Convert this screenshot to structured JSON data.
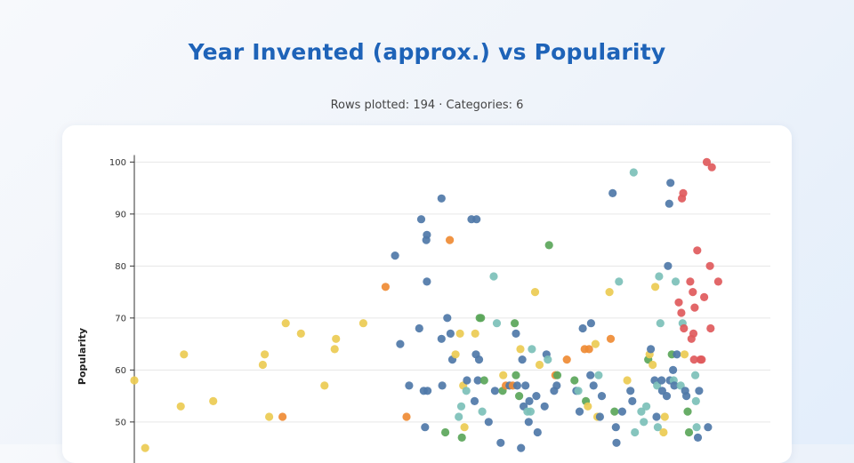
{
  "header": {
    "title": "Year Invented (approx.) vs Popularity",
    "subtitle": "Rows plotted: 194 · Categories: 6"
  },
  "colors": {
    "blue": "#4f78a8",
    "yellow": "#eccb53",
    "red": "#e05a5c",
    "teal": "#7cc0b8",
    "green": "#5ba65a",
    "orange": "#ef8b34",
    "title": "#1e63b8",
    "grid": "#e6e6e6"
  },
  "chart_data": {
    "type": "scatter",
    "xlabel": "",
    "ylabel": "Popularity",
    "ylim": [
      45,
      101
    ],
    "xlim": [
      0,
      1000
    ],
    "yticks": [
      50,
      60,
      70,
      80,
      90,
      100
    ],
    "grid": true,
    "points": [
      {
        "x": 0,
        "y": 58,
        "c": "yellow"
      },
      {
        "x": 17,
        "y": 45,
        "c": "yellow"
      },
      {
        "x": 73,
        "y": 53,
        "c": "yellow"
      },
      {
        "x": 78,
        "y": 63,
        "c": "yellow"
      },
      {
        "x": 124,
        "y": 54,
        "c": "yellow"
      },
      {
        "x": 202,
        "y": 61,
        "c": "yellow"
      },
      {
        "x": 205,
        "y": 63,
        "c": "yellow"
      },
      {
        "x": 212,
        "y": 51,
        "c": "yellow"
      },
      {
        "x": 233,
        "y": 51,
        "c": "orange"
      },
      {
        "x": 238,
        "y": 69,
        "c": "yellow"
      },
      {
        "x": 262,
        "y": 67,
        "c": "yellow"
      },
      {
        "x": 299,
        "y": 57,
        "c": "yellow"
      },
      {
        "x": 315,
        "y": 64,
        "c": "yellow"
      },
      {
        "x": 317,
        "y": 66,
        "c": "yellow"
      },
      {
        "x": 360,
        "y": 69,
        "c": "yellow"
      },
      {
        "x": 395,
        "y": 76,
        "c": "orange"
      },
      {
        "x": 410,
        "y": 82,
        "c": "blue"
      },
      {
        "x": 418,
        "y": 65,
        "c": "blue"
      },
      {
        "x": 428,
        "y": 51,
        "c": "orange"
      },
      {
        "x": 432,
        "y": 57,
        "c": "blue"
      },
      {
        "x": 448,
        "y": 68,
        "c": "blue"
      },
      {
        "x": 451,
        "y": 89,
        "c": "blue"
      },
      {
        "x": 455,
        "y": 56,
        "c": "blue"
      },
      {
        "x": 457,
        "y": 49,
        "c": "blue"
      },
      {
        "x": 459,
        "y": 85,
        "c": "blue"
      },
      {
        "x": 460,
        "y": 86,
        "c": "blue"
      },
      {
        "x": 460,
        "y": 77,
        "c": "blue"
      },
      {
        "x": 461,
        "y": 56,
        "c": "blue"
      },
      {
        "x": 483,
        "y": 93,
        "c": "blue"
      },
      {
        "x": 483,
        "y": 66,
        "c": "blue"
      },
      {
        "x": 484,
        "y": 57,
        "c": "blue"
      },
      {
        "x": 489,
        "y": 48,
        "c": "green"
      },
      {
        "x": 492,
        "y": 70,
        "c": "blue"
      },
      {
        "x": 496,
        "y": 85,
        "c": "orange"
      },
      {
        "x": 497,
        "y": 67,
        "c": "blue"
      },
      {
        "x": 500,
        "y": 62,
        "c": "blue"
      },
      {
        "x": 505,
        "y": 63,
        "c": "yellow"
      },
      {
        "x": 510,
        "y": 51,
        "c": "teal"
      },
      {
        "x": 512,
        "y": 67,
        "c": "yellow"
      },
      {
        "x": 514,
        "y": 53,
        "c": "teal"
      },
      {
        "x": 515,
        "y": 47,
        "c": "green"
      },
      {
        "x": 517,
        "y": 57,
        "c": "yellow"
      },
      {
        "x": 519,
        "y": 49,
        "c": "yellow"
      },
      {
        "x": 522,
        "y": 56,
        "c": "teal"
      },
      {
        "x": 523,
        "y": 58,
        "c": "blue"
      },
      {
        "x": 530,
        "y": 89,
        "c": "blue"
      },
      {
        "x": 535,
        "y": 54,
        "c": "blue"
      },
      {
        "x": 536,
        "y": 67,
        "c": "yellow"
      },
      {
        "x": 537,
        "y": 63,
        "c": "blue"
      },
      {
        "x": 538,
        "y": 89,
        "c": "blue"
      },
      {
        "x": 540,
        "y": 58,
        "c": "blue"
      },
      {
        "x": 542,
        "y": 62,
        "c": "blue"
      },
      {
        "x": 543,
        "y": 70,
        "c": "green"
      },
      {
        "x": 545,
        "y": 70,
        "c": "green"
      },
      {
        "x": 547,
        "y": 52,
        "c": "teal"
      },
      {
        "x": 550,
        "y": 58,
        "c": "green"
      },
      {
        "x": 557,
        "y": 50,
        "c": "blue"
      },
      {
        "x": 565,
        "y": 78,
        "c": "teal"
      },
      {
        "x": 567,
        "y": 56,
        "c": "blue"
      },
      {
        "x": 570,
        "y": 69,
        "c": "teal"
      },
      {
        "x": 576,
        "y": 46,
        "c": "blue"
      },
      {
        "x": 579,
        "y": 56,
        "c": "green"
      },
      {
        "x": 580,
        "y": 59,
        "c": "yellow"
      },
      {
        "x": 584,
        "y": 57,
        "c": "orange"
      },
      {
        "x": 590,
        "y": 57,
        "c": "blue"
      },
      {
        "x": 595,
        "y": 57,
        "c": "orange"
      },
      {
        "x": 598,
        "y": 69,
        "c": "green"
      },
      {
        "x": 600,
        "y": 67,
        "c": "blue"
      },
      {
        "x": 600,
        "y": 59,
        "c": "green"
      },
      {
        "x": 602,
        "y": 57,
        "c": "blue"
      },
      {
        "x": 605,
        "y": 55,
        "c": "green"
      },
      {
        "x": 607,
        "y": 64,
        "c": "yellow"
      },
      {
        "x": 608,
        "y": 45,
        "c": "blue"
      },
      {
        "x": 610,
        "y": 62,
        "c": "blue"
      },
      {
        "x": 612,
        "y": 53,
        "c": "blue"
      },
      {
        "x": 615,
        "y": 57,
        "c": "blue"
      },
      {
        "x": 618,
        "y": 52,
        "c": "teal"
      },
      {
        "x": 620,
        "y": 50,
        "c": "blue"
      },
      {
        "x": 621,
        "y": 54,
        "c": "blue"
      },
      {
        "x": 623,
        "y": 52,
        "c": "teal"
      },
      {
        "x": 625,
        "y": 64,
        "c": "teal"
      },
      {
        "x": 630,
        "y": 75,
        "c": "yellow"
      },
      {
        "x": 632,
        "y": 55,
        "c": "blue"
      },
      {
        "x": 634,
        "y": 48,
        "c": "blue"
      },
      {
        "x": 637,
        "y": 61,
        "c": "yellow"
      },
      {
        "x": 645,
        "y": 53,
        "c": "blue"
      },
      {
        "x": 648,
        "y": 63,
        "c": "blue"
      },
      {
        "x": 650,
        "y": 62,
        "c": "teal"
      },
      {
        "x": 652,
        "y": 84,
        "c": "green"
      },
      {
        "x": 660,
        "y": 56,
        "c": "blue"
      },
      {
        "x": 662,
        "y": 59,
        "c": "orange"
      },
      {
        "x": 664,
        "y": 57,
        "c": "blue"
      },
      {
        "x": 665,
        "y": 59,
        "c": "green"
      },
      {
        "x": 680,
        "y": 62,
        "c": "orange"
      },
      {
        "x": 692,
        "y": 58,
        "c": "green"
      },
      {
        "x": 695,
        "y": 56,
        "c": "blue"
      },
      {
        "x": 698,
        "y": 56,
        "c": "teal"
      },
      {
        "x": 700,
        "y": 52,
        "c": "blue"
      },
      {
        "x": 705,
        "y": 68,
        "c": "blue"
      },
      {
        "x": 708,
        "y": 64,
        "c": "orange"
      },
      {
        "x": 710,
        "y": 54,
        "c": "green"
      },
      {
        "x": 713,
        "y": 53,
        "c": "yellow"
      },
      {
        "x": 715,
        "y": 64,
        "c": "orange"
      },
      {
        "x": 717,
        "y": 59,
        "c": "blue"
      },
      {
        "x": 718,
        "y": 69,
        "c": "blue"
      },
      {
        "x": 722,
        "y": 57,
        "c": "blue"
      },
      {
        "x": 725,
        "y": 65,
        "c": "yellow"
      },
      {
        "x": 728,
        "y": 51,
        "c": "yellow"
      },
      {
        "x": 730,
        "y": 59,
        "c": "teal"
      },
      {
        "x": 732,
        "y": 51,
        "c": "blue"
      },
      {
        "x": 735,
        "y": 55,
        "c": "blue"
      },
      {
        "x": 747,
        "y": 75,
        "c": "yellow"
      },
      {
        "x": 749,
        "y": 66,
        "c": "orange"
      },
      {
        "x": 752,
        "y": 94,
        "c": "blue"
      },
      {
        "x": 755,
        "y": 52,
        "c": "green"
      },
      {
        "x": 757,
        "y": 49,
        "c": "blue"
      },
      {
        "x": 758,
        "y": 46,
        "c": "blue"
      },
      {
        "x": 762,
        "y": 77,
        "c": "teal"
      },
      {
        "x": 767,
        "y": 52,
        "c": "blue"
      },
      {
        "x": 775,
        "y": 58,
        "c": "yellow"
      },
      {
        "x": 780,
        "y": 56,
        "c": "blue"
      },
      {
        "x": 783,
        "y": 54,
        "c": "blue"
      },
      {
        "x": 785,
        "y": 98,
        "c": "teal"
      },
      {
        "x": 787,
        "y": 48,
        "c": "teal"
      },
      {
        "x": 797,
        "y": 52,
        "c": "teal"
      },
      {
        "x": 801,
        "y": 50,
        "c": "teal"
      },
      {
        "x": 805,
        "y": 53,
        "c": "teal"
      },
      {
        "x": 808,
        "y": 62,
        "c": "green"
      },
      {
        "x": 810,
        "y": 63,
        "c": "yellow"
      },
      {
        "x": 812,
        "y": 64,
        "c": "blue"
      },
      {
        "x": 815,
        "y": 61,
        "c": "yellow"
      },
      {
        "x": 818,
        "y": 58,
        "c": "blue"
      },
      {
        "x": 819,
        "y": 76,
        "c": "yellow"
      },
      {
        "x": 821,
        "y": 51,
        "c": "blue"
      },
      {
        "x": 822,
        "y": 57,
        "c": "teal"
      },
      {
        "x": 823,
        "y": 49,
        "c": "teal"
      },
      {
        "x": 825,
        "y": 78,
        "c": "teal"
      },
      {
        "x": 827,
        "y": 69,
        "c": "teal"
      },
      {
        "x": 829,
        "y": 58,
        "c": "blue"
      },
      {
        "x": 830,
        "y": 56,
        "c": "blue"
      },
      {
        "x": 832,
        "y": 48,
        "c": "yellow"
      },
      {
        "x": 834,
        "y": 51,
        "c": "yellow"
      },
      {
        "x": 837,
        "y": 55,
        "c": "blue"
      },
      {
        "x": 839,
        "y": 80,
        "c": "blue"
      },
      {
        "x": 841,
        "y": 92,
        "c": "blue"
      },
      {
        "x": 842,
        "y": 58,
        "c": "blue"
      },
      {
        "x": 843,
        "y": 96,
        "c": "blue"
      },
      {
        "x": 845,
        "y": 63,
        "c": "green"
      },
      {
        "x": 847,
        "y": 60,
        "c": "blue"
      },
      {
        "x": 848,
        "y": 58,
        "c": "teal"
      },
      {
        "x": 849,
        "y": 57,
        "c": "blue"
      },
      {
        "x": 851,
        "y": 77,
        "c": "teal"
      },
      {
        "x": 853,
        "y": 63,
        "c": "blue"
      },
      {
        "x": 856,
        "y": 73,
        "c": "red"
      },
      {
        "x": 859,
        "y": 57,
        "c": "teal"
      },
      {
        "x": 860,
        "y": 71,
        "c": "red"
      },
      {
        "x": 861,
        "y": 93,
        "c": "red"
      },
      {
        "x": 862,
        "y": 69,
        "c": "teal"
      },
      {
        "x": 863,
        "y": 94,
        "c": "red"
      },
      {
        "x": 864,
        "y": 68,
        "c": "red"
      },
      {
        "x": 865,
        "y": 63,
        "c": "yellow"
      },
      {
        "x": 866,
        "y": 56,
        "c": "blue"
      },
      {
        "x": 868,
        "y": 55,
        "c": "blue"
      },
      {
        "x": 870,
        "y": 52,
        "c": "green"
      },
      {
        "x": 872,
        "y": 48,
        "c": "green"
      },
      {
        "x": 874,
        "y": 77,
        "c": "red"
      },
      {
        "x": 876,
        "y": 66,
        "c": "red"
      },
      {
        "x": 878,
        "y": 75,
        "c": "red"
      },
      {
        "x": 879,
        "y": 67,
        "c": "red"
      },
      {
        "x": 880,
        "y": 62,
        "c": "red"
      },
      {
        "x": 881,
        "y": 72,
        "c": "red"
      },
      {
        "x": 882,
        "y": 59,
        "c": "teal"
      },
      {
        "x": 883,
        "y": 54,
        "c": "teal"
      },
      {
        "x": 884,
        "y": 49,
        "c": "teal"
      },
      {
        "x": 885,
        "y": 83,
        "c": "red"
      },
      {
        "x": 886,
        "y": 47,
        "c": "blue"
      },
      {
        "x": 888,
        "y": 56,
        "c": "blue"
      },
      {
        "x": 890,
        "y": 62,
        "c": "red"
      },
      {
        "x": 892,
        "y": 62,
        "c": "red"
      },
      {
        "x": 896,
        "y": 74,
        "c": "red"
      },
      {
        "x": 900,
        "y": 100,
        "c": "red"
      },
      {
        "x": 902,
        "y": 49,
        "c": "blue"
      },
      {
        "x": 905,
        "y": 80,
        "c": "red"
      },
      {
        "x": 906,
        "y": 68,
        "c": "red"
      },
      {
        "x": 908,
        "y": 99,
        "c": "red"
      },
      {
        "x": 918,
        "y": 77,
        "c": "red"
      }
    ]
  }
}
